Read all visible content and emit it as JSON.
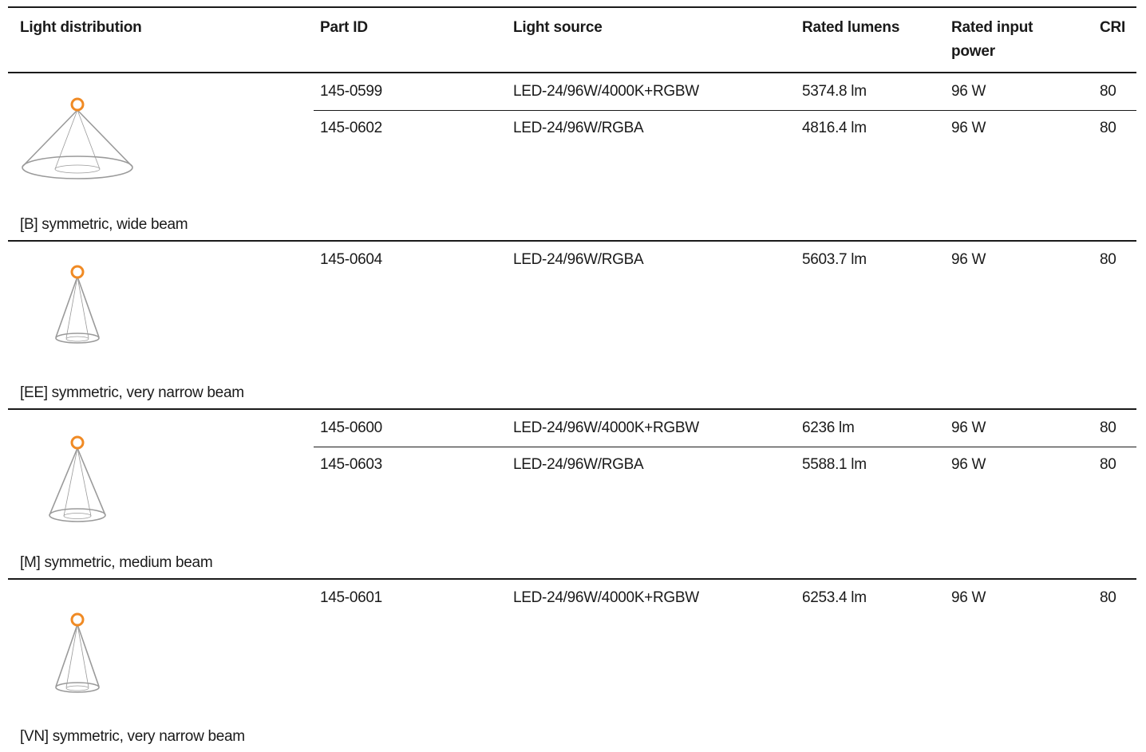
{
  "headers": {
    "distribution": "Light distribution",
    "part_id": "Part ID",
    "light_source": "Light source",
    "rated_lumens": "Rated lumens",
    "rated_input_power": "Rated input power",
    "cri": "CRI"
  },
  "icon_names": [
    "wide-beam-cone-icon",
    "very-narrow-beam-cone-icon",
    "medium-beam-cone-icon",
    "very-narrow-beam-cone-icon"
  ],
  "colors": {
    "lamp": "#f08a24",
    "cone": "#9a9a9a",
    "rule": "#1a1a1a"
  },
  "groups": [
    {
      "caption": "[B] symmetric, wide beam",
      "rows": [
        {
          "part_id": "145-0599",
          "light_source": "LED-24/96W/4000K+RGBW",
          "lumens": "5374.8 lm",
          "power": "96 W",
          "cri": "80"
        },
        {
          "part_id": "145-0602",
          "light_source": "LED-24/96W/RGBA",
          "lumens": "4816.4 lm",
          "power": "96 W",
          "cri": "80"
        }
      ]
    },
    {
      "caption": "[EE] symmetric, very narrow beam",
      "rows": [
        {
          "part_id": "145-0604",
          "light_source": "LED-24/96W/RGBA",
          "lumens": "5603.7 lm",
          "power": "96 W",
          "cri": "80"
        }
      ]
    },
    {
      "caption": "[M] symmetric, medium beam",
      "rows": [
        {
          "part_id": "145-0600",
          "light_source": "LED-24/96W/4000K+RGBW",
          "lumens": "6236 lm",
          "power": "96 W",
          "cri": "80"
        },
        {
          "part_id": "145-0603",
          "light_source": "LED-24/96W/RGBA",
          "lumens": "5588.1 lm",
          "power": "96 W",
          "cri": "80"
        }
      ]
    },
    {
      "caption": "[VN] symmetric, very narrow beam",
      "rows": [
        {
          "part_id": "145-0601",
          "light_source": "LED-24/96W/4000K+RGBW",
          "lumens": "6253.4 lm",
          "power": "96 W",
          "cri": "80"
        }
      ]
    }
  ]
}
